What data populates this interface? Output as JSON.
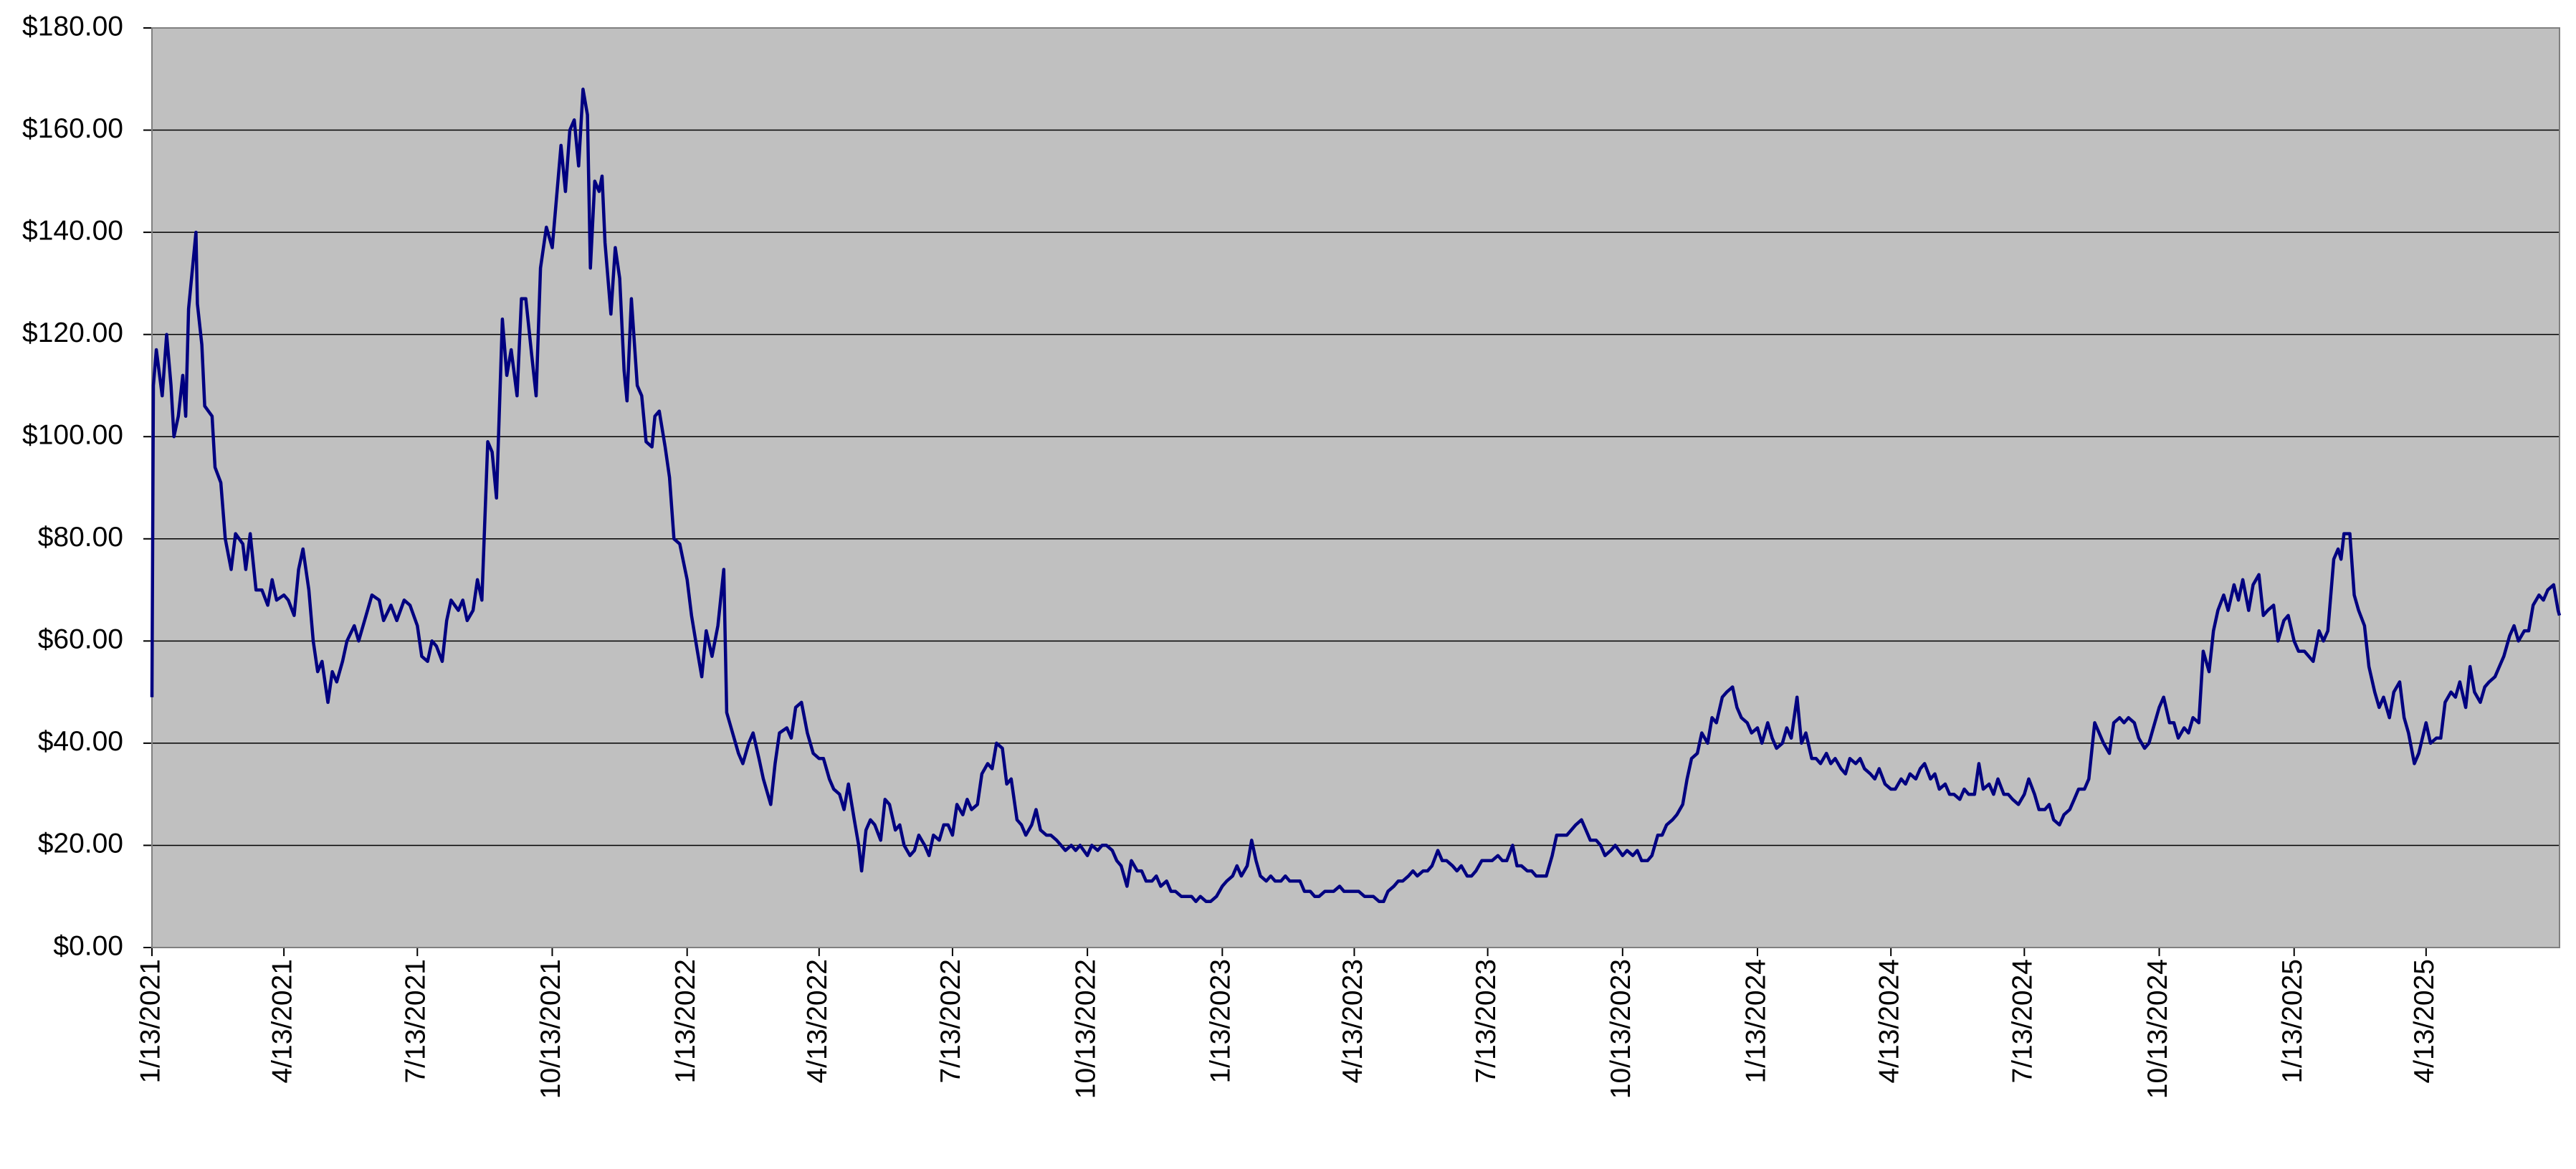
{
  "chart_data": {
    "type": "line",
    "color": "#000080",
    "background": "#c0c0c0",
    "grid": true,
    "xlim": [
      "2021-01-13",
      "2025-07-13"
    ],
    "ylim": [
      0,
      180
    ],
    "yticks": [
      {
        "value": 0,
        "label": "$0.00"
      },
      {
        "value": 20,
        "label": "$20.00"
      },
      {
        "value": 40,
        "label": "$40.00"
      },
      {
        "value": 60,
        "label": "$60.00"
      },
      {
        "value": 80,
        "label": "$80.00"
      },
      {
        "value": 100,
        "label": "$100.00"
      },
      {
        "value": 120,
        "label": "$120.00"
      },
      {
        "value": 140,
        "label": "$140.00"
      },
      {
        "value": 160,
        "label": "$160.00"
      },
      {
        "value": 180,
        "label": "$180.00"
      }
    ],
    "xticks": [
      {
        "value": "2021-01-13",
        "label": "1/13/2021"
      },
      {
        "value": "2021-04-13",
        "label": "4/13/2021"
      },
      {
        "value": "2021-07-13",
        "label": "7/13/2021"
      },
      {
        "value": "2021-10-13",
        "label": "10/13/2021"
      },
      {
        "value": "2022-01-13",
        "label": "1/13/2022"
      },
      {
        "value": "2022-04-13",
        "label": "4/13/2022"
      },
      {
        "value": "2022-07-13",
        "label": "7/13/2022"
      },
      {
        "value": "2022-10-13",
        "label": "10/13/2022"
      },
      {
        "value": "2023-01-13",
        "label": "1/13/2023"
      },
      {
        "value": "2023-04-13",
        "label": "4/13/2023"
      },
      {
        "value": "2023-07-13",
        "label": "7/13/2023"
      },
      {
        "value": "2023-10-13",
        "label": "10/13/2023"
      },
      {
        "value": "2024-01-13",
        "label": "1/13/2024"
      },
      {
        "value": "2024-04-13",
        "label": "4/13/2024"
      },
      {
        "value": "2024-07-13",
        "label": "7/13/2024"
      },
      {
        "value": "2024-10-13",
        "label": "10/13/2024"
      },
      {
        "value": "2025-01-13",
        "label": "1/13/2025"
      },
      {
        "value": "2025-04-13",
        "label": "4/13/2025"
      }
    ],
    "x": [
      "2021-01-13",
      "2021-01-14",
      "2021-01-16",
      "2021-01-20",
      "2021-01-23",
      "2021-01-26",
      "2021-01-28",
      "2021-01-31",
      "2021-02-03",
      "2021-02-05",
      "2021-02-07",
      "2021-02-12",
      "2021-02-13",
      "2021-02-16",
      "2021-02-18",
      "2021-02-23",
      "2021-02-25",
      "2021-03-01",
      "2021-03-04",
      "2021-03-08",
      "2021-03-11",
      "2021-03-16",
      "2021-03-18",
      "2021-03-21",
      "2021-03-25",
      "2021-03-29",
      "2021-04-02",
      "2021-04-05",
      "2021-04-08",
      "2021-04-13",
      "2021-04-16",
      "2021-04-20",
      "2021-04-23",
      "2021-04-26",
      "2021-04-30",
      "2021-05-03",
      "2021-05-06",
      "2021-05-09",
      "2021-05-13",
      "2021-05-16",
      "2021-05-19",
      "2021-05-23",
      "2021-05-26",
      "2021-05-31",
      "2021-06-03",
      "2021-06-08",
      "2021-06-12",
      "2021-06-17",
      "2021-06-20",
      "2021-06-25",
      "2021-06-29",
      "2021-07-04",
      "2021-07-08",
      "2021-07-13",
      "2021-07-16",
      "2021-07-20",
      "2021-07-23",
      "2021-07-26",
      "2021-07-30",
      "2021-08-02",
      "2021-08-05",
      "2021-08-10",
      "2021-08-13",
      "2021-08-16",
      "2021-08-20",
      "2021-08-23",
      "2021-08-26",
      "2021-08-30",
      "2021-09-02",
      "2021-09-05",
      "2021-09-09",
      "2021-09-12",
      "2021-09-15",
      "2021-09-19",
      "2021-09-22",
      "2021-09-25",
      "2021-09-29",
      "2021-10-02",
      "2021-10-05",
      "2021-10-09",
      "2021-10-13",
      "2021-10-16",
      "2021-10-19",
      "2021-10-22",
      "2021-10-25",
      "2021-10-28",
      "2021-10-31",
      "2021-11-03",
      "2021-11-06",
      "2021-11-08",
      "2021-11-11",
      "2021-11-14",
      "2021-11-16",
      "2021-11-18",
      "2021-11-22",
      "2021-11-25",
      "2021-11-28",
      "2021-12-01",
      "2021-12-03",
      "2021-12-06",
      "2021-12-10",
      "2021-12-13",
      "2021-12-16",
      "2021-12-20",
      "2021-12-22",
      "2021-12-25",
      "2021-12-29",
      "2022-01-01",
      "2022-01-04",
      "2022-01-08",
      "2022-01-13",
      "2022-01-16",
      "2022-01-20",
      "2022-01-23",
      "2022-01-26",
      "2022-01-30",
      "2022-02-03",
      "2022-02-07",
      "2022-02-09",
      "2022-02-13",
      "2022-02-17",
      "2022-02-20",
      "2022-02-24",
      "2022-02-27",
      "2022-03-03",
      "2022-03-06",
      "2022-03-11",
      "2022-03-14",
      "2022-03-17",
      "2022-03-22",
      "2022-03-25",
      "2022-03-28",
      "2022-04-01",
      "2022-04-05",
      "2022-04-09",
      "2022-04-13",
      "2022-04-16",
      "2022-04-20",
      "2022-04-23",
      "2022-04-27",
      "2022-04-30",
      "2022-05-03",
      "2022-05-07",
      "2022-05-10",
      "2022-05-12",
      "2022-05-15",
      "2022-05-18",
      "2022-05-21",
      "2022-05-25",
      "2022-05-28",
      "2022-05-31",
      "2022-06-04",
      "2022-06-07",
      "2022-06-10",
      "2022-06-14",
      "2022-06-17",
      "2022-06-20",
      "2022-06-24",
      "2022-06-27",
      "2022-06-30",
      "2022-07-04",
      "2022-07-07",
      "2022-07-10",
      "2022-07-13",
      "2022-07-16",
      "2022-07-20",
      "2022-07-23",
      "2022-07-26",
      "2022-07-30",
      "2022-08-02",
      "2022-08-06",
      "2022-08-09",
      "2022-08-12",
      "2022-08-16",
      "2022-08-19",
      "2022-08-22",
      "2022-08-26",
      "2022-08-29",
      "2022-09-01",
      "2022-09-05",
      "2022-09-08",
      "2022-09-11",
      "2022-09-15",
      "2022-09-18",
      "2022-09-22",
      "2022-09-25",
      "2022-09-28",
      "2022-10-02",
      "2022-10-05",
      "2022-10-08",
      "2022-10-13",
      "2022-10-16",
      "2022-10-20",
      "2022-10-23",
      "2022-10-26",
      "2022-10-30",
      "2022-11-02",
      "2022-11-05",
      "2022-11-09",
      "2022-11-12",
      "2022-11-16",
      "2022-11-19",
      "2022-11-22",
      "2022-11-26",
      "2022-11-29",
      "2022-12-02",
      "2022-12-06",
      "2022-12-09",
      "2022-12-12",
      "2022-12-16",
      "2022-12-19",
      "2022-12-23",
      "2022-12-26",
      "2022-12-29",
      "2023-01-02",
      "2023-01-05",
      "2023-01-09",
      "2023-01-13",
      "2023-01-16",
      "2023-01-20",
      "2023-01-23",
      "2023-01-26",
      "2023-01-30",
      "2023-02-02",
      "2023-02-05",
      "2023-02-08",
      "2023-02-12",
      "2023-02-15",
      "2023-02-18",
      "2023-02-22",
      "2023-02-25",
      "2023-02-28",
      "2023-03-04",
      "2023-03-07",
      "2023-03-10",
      "2023-03-14",
      "2023-03-17",
      "2023-03-20",
      "2023-03-24",
      "2023-03-27",
      "2023-03-30",
      "2023-04-03",
      "2023-04-06",
      "2023-04-09",
      "2023-04-13",
      "2023-04-16",
      "2023-04-20",
      "2023-04-23",
      "2023-04-26",
      "2023-04-30",
      "2023-05-03",
      "2023-05-06",
      "2023-05-10",
      "2023-05-13",
      "2023-05-16",
      "2023-05-20",
      "2023-05-23",
      "2023-05-26",
      "2023-05-30",
      "2023-06-02",
      "2023-06-05",
      "2023-06-09",
      "2023-06-12",
      "2023-06-15",
      "2023-06-19",
      "2023-06-22",
      "2023-06-25",
      "2023-06-29",
      "2023-07-02",
      "2023-07-05",
      "2023-07-09",
      "2023-07-13",
      "2023-07-16",
      "2023-07-20",
      "2023-07-23",
      "2023-07-26",
      "2023-07-30",
      "2023-08-02",
      "2023-08-05",
      "2023-08-09",
      "2023-08-12",
      "2023-08-15",
      "2023-08-19",
      "2023-08-22",
      "2023-08-26",
      "2023-08-29",
      "2023-09-01",
      "2023-09-05",
      "2023-09-08",
      "2023-09-11",
      "2023-09-15",
      "2023-09-18",
      "2023-09-21",
      "2023-09-25",
      "2023-09-28",
      "2023-10-01",
      "2023-10-05",
      "2023-10-08",
      "2023-10-13",
      "2023-10-16",
      "2023-10-20",
      "2023-10-23",
      "2023-10-26",
      "2023-10-30",
      "2023-11-02",
      "2023-11-06",
      "2023-11-09",
      "2023-11-12",
      "2023-11-16",
      "2023-11-19",
      "2023-11-23",
      "2023-11-26",
      "2023-11-29",
      "2023-12-03",
      "2023-12-06",
      "2023-12-10",
      "2023-12-13",
      "2023-12-16",
      "2023-12-20",
      "2023-12-23",
      "2023-12-27",
      "2023-12-30",
      "2024-01-02",
      "2024-01-06",
      "2024-01-09",
      "2024-01-13",
      "2024-01-16",
      "2024-01-20",
      "2024-01-23",
      "2024-01-26",
      "2024-01-30",
      "2024-02-02",
      "2024-02-05",
      "2024-02-09",
      "2024-02-12",
      "2024-02-15",
      "2024-02-19",
      "2024-02-22",
      "2024-02-25",
      "2024-02-29",
      "2024-03-03",
      "2024-03-06",
      "2024-03-10",
      "2024-03-13",
      "2024-03-16",
      "2024-03-20",
      "2024-03-23",
      "2024-03-26",
      "2024-03-30",
      "2024-04-02",
      "2024-04-05",
      "2024-04-09",
      "2024-04-13",
      "2024-04-16",
      "2024-04-20",
      "2024-04-23",
      "2024-04-26",
      "2024-04-30",
      "2024-05-03",
      "2024-05-06",
      "2024-05-10",
      "2024-05-13",
      "2024-05-16",
      "2024-05-20",
      "2024-05-23",
      "2024-05-26",
      "2024-05-30",
      "2024-06-02",
      "2024-06-05",
      "2024-06-09",
      "2024-06-12",
      "2024-06-15",
      "2024-06-19",
      "2024-06-22",
      "2024-06-25",
      "2024-06-29",
      "2024-07-02",
      "2024-07-05",
      "2024-07-09",
      "2024-07-13",
      "2024-07-16",
      "2024-07-20",
      "2024-07-23",
      "2024-07-27",
      "2024-07-30",
      "2024-08-02",
      "2024-08-06",
      "2024-08-09",
      "2024-08-13",
      "2024-08-16",
      "2024-08-19",
      "2024-08-23",
      "2024-08-26",
      "2024-08-30",
      "2024-09-02",
      "2024-09-05",
      "2024-09-09",
      "2024-09-12",
      "2024-09-16",
      "2024-09-19",
      "2024-09-22",
      "2024-09-26",
      "2024-09-29",
      "2024-10-03",
      "2024-10-06",
      "2024-10-09",
      "2024-10-13",
      "2024-10-16",
      "2024-10-20",
      "2024-10-23",
      "2024-10-26",
      "2024-10-30",
      "2024-11-02",
      "2024-11-05",
      "2024-11-09",
      "2024-11-12",
      "2024-11-16",
      "2024-11-19",
      "2024-11-22",
      "2024-11-26",
      "2024-11-29",
      "2024-12-03",
      "2024-12-06",
      "2024-12-09",
      "2024-12-13",
      "2024-12-16",
      "2024-12-20",
      "2024-12-23",
      "2024-12-26",
      "2024-12-30",
      "2025-01-02",
      "2025-01-06",
      "2025-01-09",
      "2025-01-13",
      "2025-01-16",
      "2025-01-20",
      "2025-01-23",
      "2025-01-26",
      "2025-01-30",
      "2025-02-02",
      "2025-02-05",
      "2025-02-09",
      "2025-02-12",
      "2025-02-14",
      "2025-02-16",
      "2025-02-20",
      "2025-02-23",
      "2025-02-26",
      "2025-03-02",
      "2025-03-05",
      "2025-03-09",
      "2025-03-12",
      "2025-03-15",
      "2025-03-19",
      "2025-03-22",
      "2025-03-26",
      "2025-03-29",
      "2025-04-01",
      "2025-04-05",
      "2025-04-08",
      "2025-04-13",
      "2025-04-16",
      "2025-04-20",
      "2025-04-23",
      "2025-04-26",
      "2025-04-30",
      "2025-05-03",
      "2025-05-06",
      "2025-05-10",
      "2025-05-13",
      "2025-05-16",
      "2025-05-20",
      "2025-05-23",
      "2025-05-26",
      "2025-05-30",
      "2025-06-02",
      "2025-06-05",
      "2025-06-09",
      "2025-06-12",
      "2025-06-15",
      "2025-06-19",
      "2025-06-22",
      "2025-06-25",
      "2025-06-29",
      "2025-07-02",
      "2025-07-05",
      "2025-07-09",
      "2025-07-12",
      "2025-07-13"
    ],
    "values": [
      49,
      110,
      117,
      108,
      120,
      110,
      100,
      104,
      112,
      104,
      125,
      140,
      126,
      118,
      106,
      104,
      94,
      91,
      80,
      74,
      81,
      79,
      74,
      81,
      70,
      70,
      67,
      72,
      68,
      69,
      68,
      65,
      74,
      78,
      70,
      60,
      54,
      56,
      48,
      54,
      52,
      56,
      60,
      63,
      60,
      65,
      69,
      68,
      64,
      67,
      64,
      68,
      67,
      63,
      57,
      56,
      60,
      59,
      56,
      64,
      68,
      66,
      68,
      64,
      66,
      72,
      68,
      99,
      97,
      88,
      123,
      112,
      117,
      108,
      127,
      127,
      116,
      108,
      133,
      141,
      137,
      147,
      157,
      148,
      160,
      162,
      153,
      168,
      163,
      133,
      150,
      148,
      151,
      138,
      124,
      137,
      131,
      113,
      107,
      127,
      110,
      108,
      99,
      98,
      104,
      105,
      98,
      92,
      80,
      79,
      72,
      65,
      58,
      53,
      62,
      57,
      63,
      74,
      46,
      42,
      38,
      36,
      40,
      42,
      37,
      33,
      28,
      36,
      42,
      43,
      41,
      47,
      48,
      42,
      38,
      37,
      37,
      33,
      31,
      30,
      27,
      32,
      25,
      20,
      15,
      23,
      25,
      24,
      21,
      29,
      28,
      23,
      24,
      20,
      18,
      19,
      22,
      20,
      18,
      22,
      21,
      24,
      24,
      22,
      28,
      26,
      29,
      27,
      28,
      34,
      36,
      35,
      40,
      39,
      32,
      33,
      25,
      24,
      22,
      24,
      27,
      23,
      22,
      22,
      21,
      20,
      19,
      20,
      19,
      20,
      18,
      20,
      19,
      20,
      20,
      19,
      17,
      16,
      12,
      17,
      15,
      15,
      13,
      13,
      14,
      12,
      13,
      11,
      11,
      10,
      10,
      10,
      9,
      10,
      9,
      9,
      10,
      12,
      13,
      14,
      16,
      14,
      16,
      21,
      17,
      14,
      13,
      14,
      13,
      13,
      14,
      13,
      13,
      13,
      11,
      11,
      10,
      10,
      11,
      11,
      11,
      12,
      11,
      11,
      11,
      11,
      10,
      10,
      10,
      9,
      9,
      11,
      12,
      13,
      13,
      14,
      15,
      14,
      15,
      15,
      16,
      19,
      17,
      17,
      16,
      15,
      16,
      14,
      14,
      15,
      17,
      17,
      17,
      18,
      17,
      17,
      20,
      16,
      16,
      15,
      15,
      14,
      14,
      14,
      18,
      22,
      22,
      22,
      23,
      24,
      25,
      23,
      21,
      21,
      20,
      18,
      19,
      20,
      18,
      19,
      18,
      19,
      17,
      17,
      18,
      22,
      22,
      24,
      25,
      26,
      28,
      33,
      37,
      38,
      42,
      40,
      45,
      44,
      49,
      50,
      51,
      47,
      45,
      44,
      42,
      43,
      40,
      44,
      41,
      39,
      40,
      43,
      41,
      49,
      40,
      42,
      37,
      37,
      36,
      38,
      36,
      37,
      35,
      34,
      37,
      36,
      37,
      35,
      34,
      33,
      35,
      32,
      31,
      31,
      33,
      32,
      34,
      33,
      35,
      36,
      33,
      34,
      31,
      32,
      30,
      30,
      29,
      31,
      30,
      30,
      36,
      31,
      32,
      30,
      33,
      30,
      30,
      29,
      28,
      30,
      33,
      30,
      27,
      27,
      28,
      25,
      24,
      26,
      27,
      29,
      31,
      31,
      33,
      44,
      42,
      40,
      38,
      44,
      45,
      44,
      45,
      44,
      41,
      39,
      40,
      43,
      47,
      49,
      44,
      44,
      41,
      43,
      42,
      45,
      44,
      58,
      54,
      62,
      66,
      69,
      66,
      71,
      68,
      72,
      66,
      71,
      73,
      65,
      66,
      67,
      60,
      64,
      65,
      60,
      58,
      58,
      57,
      56,
      62,
      60,
      62,
      76,
      78,
      76,
      81,
      81,
      69,
      66,
      63,
      55,
      50,
      47,
      49,
      45,
      50,
      52,
      45,
      42,
      36,
      38,
      44,
      40,
      41,
      41,
      48,
      50,
      49,
      52,
      47,
      55,
      50,
      48,
      51,
      52,
      53,
      55,
      57,
      61,
      63,
      60,
      62,
      62,
      67,
      69,
      68,
      70,
      71,
      66,
      65
    ]
  }
}
